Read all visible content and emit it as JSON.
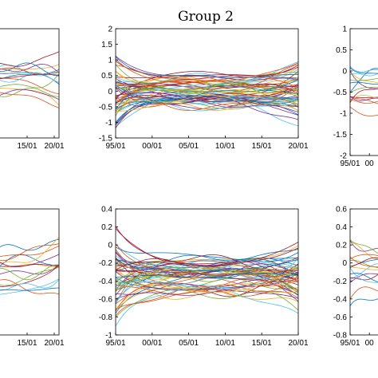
{
  "figure": {
    "title": "Group 2"
  },
  "chart_data": [
    {
      "type": "line",
      "panel": "top-left",
      "x_ticks": [
        "15/01",
        "20/01"
      ],
      "y_ticks": [],
      "grid": false,
      "note": "partially cropped at left edge"
    },
    {
      "type": "line",
      "panel": "top-center",
      "x_ticks": [
        "95/01",
        "00/01",
        "05/01",
        "10/01",
        "15/01",
        "20/01"
      ],
      "y_ticks": [
        "2",
        "1.5",
        "1",
        "0.5",
        "0",
        "-0.5",
        "-1",
        "-1.5"
      ],
      "xlim": [
        1995,
        2020
      ],
      "ylim": [
        -1.5,
        2
      ],
      "grid": false,
      "series_count": 60
    },
    {
      "type": "line",
      "panel": "top-right",
      "x_ticks": [
        "95/01",
        "00"
      ],
      "y_ticks": [
        "1",
        "0.5",
        "0",
        "-0.5",
        "-1",
        "-1.5",
        "-2"
      ],
      "ylim": [
        -2,
        1
      ],
      "grid": false,
      "note": "partially cropped at right edge"
    },
    {
      "type": "line",
      "panel": "bottom-left",
      "x_ticks": [
        "15/01",
        "20/01"
      ],
      "y_ticks": [],
      "grid": false,
      "note": "partially cropped at left edge"
    },
    {
      "type": "line",
      "panel": "bottom-center",
      "x_ticks": [
        "95/01",
        "00/01",
        "05/01",
        "10/01",
        "15/01",
        "20/01"
      ],
      "y_ticks": [
        "0.4",
        "0.2",
        "0",
        "-0.2",
        "-0.4",
        "-0.6",
        "-0.8",
        "-1"
      ],
      "xlim": [
        1995,
        2020
      ],
      "ylim": [
        -1,
        0.4
      ],
      "grid": false,
      "series_count": 60
    },
    {
      "type": "line",
      "panel": "bottom-right",
      "x_ticks": [
        "95/01",
        "00"
      ],
      "y_ticks": [
        "0.6",
        "0.4",
        "0.2",
        "0",
        "-0.2",
        "-0.4",
        "-0.6",
        "-0.8"
      ],
      "ylim": [
        -0.8,
        0.6
      ],
      "grid": false,
      "note": "partially cropped at right edge"
    }
  ],
  "colors": {
    "palette": [
      "#0072BD",
      "#D95319",
      "#EDB120",
      "#7E2F8E",
      "#77AC30",
      "#4DBEEE",
      "#A2142F"
    ]
  }
}
